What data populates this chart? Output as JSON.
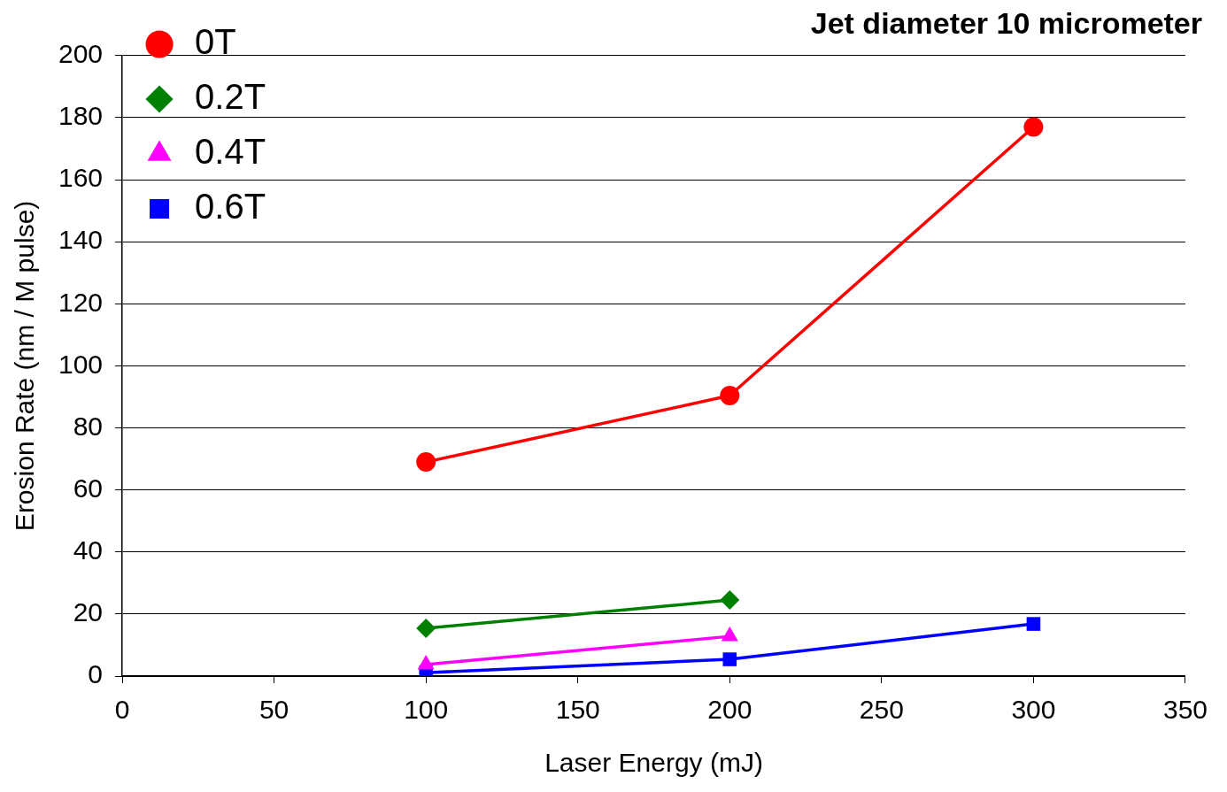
{
  "chart_data": {
    "type": "line",
    "title": "Jet diameter 10 micrometer",
    "xlabel": "Laser Energy (mJ)",
    "ylabel": "Erosion Rate (nm / M pulse)",
    "x": [
      100,
      200,
      300
    ],
    "series": [
      {
        "name": "0T",
        "color": "#ff0000",
        "marker": "circle",
        "values": [
          69,
          90.4,
          177
        ]
      },
      {
        "name": "0.2T",
        "color": "#008000",
        "marker": "diamond",
        "values": [
          15.4,
          24.5,
          null
        ]
      },
      {
        "name": "0.4T",
        "color": "#ff00ff",
        "marker": "triangle",
        "values": [
          3.7,
          12.8,
          null
        ]
      },
      {
        "name": "0.6T",
        "color": "#0000ff",
        "marker": "square",
        "values": [
          1.1,
          5.4,
          16.8
        ]
      }
    ],
    "xlim": [
      0,
      350
    ],
    "xticks": [
      0,
      50,
      100,
      150,
      200,
      250,
      300,
      350
    ],
    "ylim": [
      0,
      200
    ],
    "yticks": [
      0,
      20,
      40,
      60,
      80,
      100,
      120,
      140,
      160,
      180,
      200
    ],
    "grid": "y",
    "legend": "top left",
    "line_style": "solid"
  }
}
